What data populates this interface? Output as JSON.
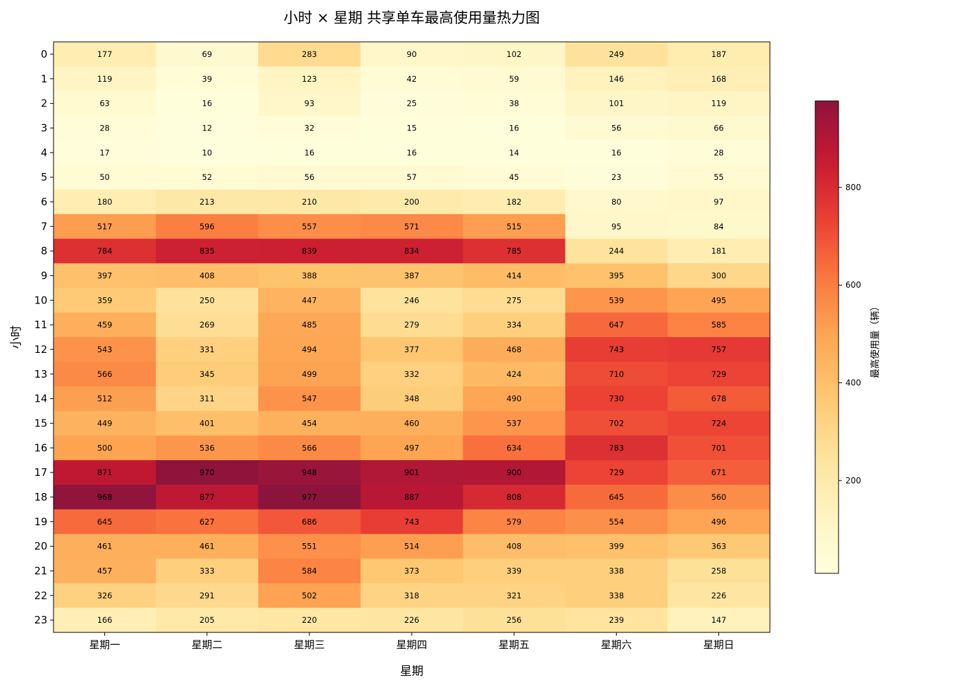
{
  "chart_data": {
    "type": "heatmap",
    "title": "小时 × 星期 共享单车最高使用量热力图",
    "xlabel": "星期",
    "ylabel": "小时",
    "x_categories": [
      "星期一",
      "星期二",
      "星期三",
      "星期四",
      "星期五",
      "星期六",
      "星期日"
    ],
    "y_categories": [
      "0",
      "1",
      "2",
      "3",
      "4",
      "5",
      "6",
      "7",
      "8",
      "9",
      "10",
      "11",
      "12",
      "13",
      "14",
      "15",
      "16",
      "17",
      "18",
      "19",
      "20",
      "21",
      "22",
      "23"
    ],
    "values": [
      [
        177,
        69,
        283,
        90,
        102,
        249,
        187
      ],
      [
        119,
        39,
        123,
        42,
        59,
        146,
        168
      ],
      [
        63,
        16,
        93,
        25,
        38,
        101,
        119
      ],
      [
        28,
        12,
        32,
        15,
        16,
        56,
        66
      ],
      [
        17,
        10,
        16,
        16,
        14,
        16,
        28
      ],
      [
        50,
        52,
        56,
        57,
        45,
        23,
        55
      ],
      [
        180,
        213,
        210,
        200,
        182,
        80,
        97
      ],
      [
        517,
        596,
        557,
        571,
        515,
        95,
        84
      ],
      [
        784,
        835,
        839,
        834,
        785,
        244,
        181
      ],
      [
        397,
        408,
        388,
        387,
        414,
        395,
        300
      ],
      [
        359,
        250,
        447,
        246,
        275,
        539,
        495
      ],
      [
        459,
        269,
        485,
        279,
        334,
        647,
        585
      ],
      [
        543,
        331,
        494,
        377,
        468,
        743,
        757
      ],
      [
        566,
        345,
        499,
        332,
        424,
        710,
        729
      ],
      [
        512,
        311,
        547,
        348,
        490,
        730,
        678
      ],
      [
        449,
        401,
        454,
        460,
        537,
        702,
        724
      ],
      [
        500,
        536,
        566,
        497,
        634,
        783,
        701
      ],
      [
        871,
        970,
        948,
        901,
        900,
        729,
        671
      ],
      [
        968,
        877,
        977,
        887,
        808,
        645,
        560
      ],
      [
        645,
        627,
        686,
        743,
        579,
        554,
        496
      ],
      [
        461,
        461,
        551,
        514,
        408,
        399,
        363
      ],
      [
        457,
        333,
        584,
        373,
        339,
        338,
        258
      ],
      [
        326,
        291,
        502,
        318,
        321,
        338,
        226
      ],
      [
        166,
        205,
        220,
        226,
        256,
        239,
        147
      ]
    ],
    "colormap": "YlOrRd",
    "color_range": [
      10,
      977
    ],
    "colorbar": {
      "label": "最高使用量（辆）",
      "ticks": [
        200,
        400,
        600,
        800
      ]
    },
    "grid": false,
    "cell_labels_shown": true
  }
}
